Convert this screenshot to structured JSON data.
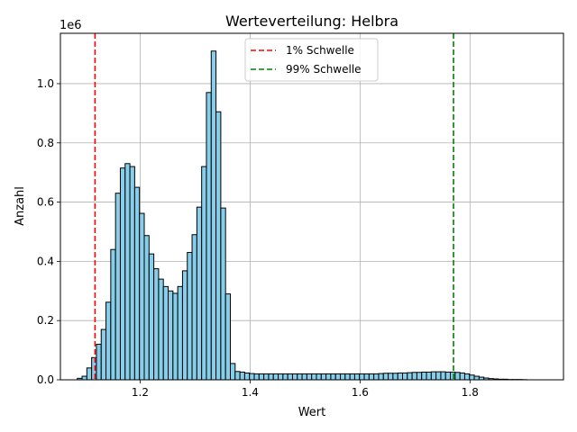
{
  "chart_data": {
    "type": "bar",
    "title": "Werteverteilung: Helbra",
    "xlabel": "Wert",
    "ylabel": "Anzahl",
    "y_scale_label": "1e6",
    "xlim": [
      1.055,
      1.97
    ],
    "ylim": [
      0,
      1.17
    ],
    "xticks": [
      1.2,
      1.4,
      1.6,
      1.8
    ],
    "xtick_labels": [
      "1.2",
      "1.4",
      "1.6",
      "1.8"
    ],
    "yticks": [
      0.0,
      0.2,
      0.4,
      0.6,
      0.8,
      1.0
    ],
    "ytick_labels": [
      "0.0",
      "0.2",
      "0.4",
      "0.6",
      "0.8",
      "1.0"
    ],
    "grid": true,
    "legend_position": "top-center",
    "bin_width": 0.0087,
    "bins_start": [
      1.0857,
      1.0944,
      1.1031,
      1.1118,
      1.1205,
      1.1292,
      1.1379,
      1.1466,
      1.1553,
      1.164,
      1.1727,
      1.1814,
      1.1901,
      1.1988,
      1.2075,
      1.2162,
      1.2249,
      1.2336,
      1.2423,
      1.251,
      1.2597,
      1.2684,
      1.2771,
      1.2858,
      1.2945,
      1.3032,
      1.3119,
      1.3206,
      1.3293,
      1.338,
      1.3467,
      1.3554,
      1.3641,
      1.3728,
      1.3815,
      1.3902,
      1.3989,
      1.4076,
      1.4163,
      1.425,
      1.4337,
      1.4424,
      1.4511,
      1.4598,
      1.4685,
      1.4772,
      1.4859,
      1.4946,
      1.5033,
      1.512,
      1.5207,
      1.5294,
      1.5381,
      1.5468,
      1.5555,
      1.5642,
      1.5729,
      1.5816,
      1.5903,
      1.599,
      1.6077,
      1.6164,
      1.6251,
      1.6338,
      1.6425,
      1.6512,
      1.6599,
      1.6686,
      1.6773,
      1.686,
      1.6947,
      1.7034,
      1.7121,
      1.7208,
      1.7295,
      1.7382,
      1.7469,
      1.7556,
      1.7643,
      1.773,
      1.7817,
      1.7904,
      1.7991,
      1.8078,
      1.8165,
      1.8252,
      1.8339,
      1.8426,
      1.8513,
      1.86,
      1.8687,
      1.8774,
      1.8861,
      1.8948
    ],
    "counts": [
      0.005,
      0.012,
      0.04,
      0.075,
      0.12,
      0.17,
      0.262,
      0.44,
      0.63,
      0.715,
      0.73,
      0.72,
      0.65,
      0.562,
      0.487,
      0.425,
      0.375,
      0.34,
      0.315,
      0.3,
      0.292,
      0.315,
      0.368,
      0.43,
      0.49,
      0.583,
      0.72,
      0.97,
      1.11,
      0.905,
      0.58,
      0.29,
      0.055,
      0.028,
      0.026,
      0.023,
      0.021,
      0.02,
      0.02,
      0.02,
      0.02,
      0.02,
      0.02,
      0.02,
      0.02,
      0.02,
      0.02,
      0.02,
      0.02,
      0.02,
      0.02,
      0.02,
      0.02,
      0.02,
      0.02,
      0.02,
      0.02,
      0.02,
      0.02,
      0.02,
      0.02,
      0.02,
      0.02,
      0.021,
      0.022,
      0.022,
      0.022,
      0.023,
      0.023,
      0.024,
      0.025,
      0.025,
      0.026,
      0.026,
      0.027,
      0.027,
      0.027,
      0.026,
      0.026,
      0.025,
      0.023,
      0.02,
      0.016,
      0.012,
      0.009,
      0.006,
      0.004,
      0.003,
      0.002,
      0.002,
      0.001,
      0.001,
      0.001,
      0.0005
    ],
    "bar_color": "#87ceeb",
    "bar_edge_color": "#000000",
    "thresholds": [
      {
        "name": "1% Schwelle",
        "x": 1.118,
        "color": "#ff0000",
        "style": "dashed"
      },
      {
        "name": "99% Schwelle",
        "x": 1.77,
        "color": "#008000",
        "style": "dashed"
      }
    ]
  }
}
